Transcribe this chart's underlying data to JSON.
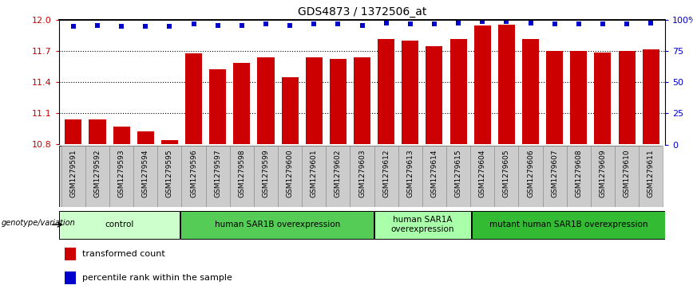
{
  "title": "GDS4873 / 1372506_at",
  "samples": [
    "GSM1279591",
    "GSM1279592",
    "GSM1279593",
    "GSM1279594",
    "GSM1279595",
    "GSM1279596",
    "GSM1279597",
    "GSM1279598",
    "GSM1279599",
    "GSM1279600",
    "GSM1279601",
    "GSM1279602",
    "GSM1279603",
    "GSM1279612",
    "GSM1279613",
    "GSM1279614",
    "GSM1279615",
    "GSM1279604",
    "GSM1279605",
    "GSM1279606",
    "GSM1279607",
    "GSM1279608",
    "GSM1279609",
    "GSM1279610",
    "GSM1279611"
  ],
  "red_values": [
    11.04,
    11.04,
    10.97,
    10.93,
    10.84,
    11.68,
    11.53,
    11.59,
    11.64,
    11.45,
    11.64,
    11.63,
    11.64,
    11.82,
    11.8,
    11.75,
    11.82,
    11.95,
    11.96,
    11.82,
    11.7,
    11.7,
    11.69,
    11.7,
    11.72
  ],
  "blue_values": [
    95,
    96,
    95,
    95,
    95,
    97,
    96,
    96,
    97,
    96,
    97,
    97,
    96,
    98,
    97,
    97,
    98,
    99,
    99,
    98,
    97,
    97,
    97,
    97,
    98
  ],
  "bar_color": "#cc0000",
  "dot_color": "#0000cc",
  "ylim_left": [
    10.8,
    12.0
  ],
  "ylim_right": [
    0,
    100
  ],
  "yticks_left": [
    10.8,
    11.1,
    11.4,
    11.7,
    12.0
  ],
  "yticks_right": [
    0,
    25,
    50,
    75,
    100
  ],
  "ytick_labels_right": [
    "0",
    "25",
    "50",
    "75",
    "100%"
  ],
  "groups": [
    {
      "label": "control",
      "start": 0,
      "end": 5,
      "color": "#ccffcc"
    },
    {
      "label": "human SAR1B overexpression",
      "start": 5,
      "end": 13,
      "color": "#55cc55"
    },
    {
      "label": "human SAR1A\noverexpression",
      "start": 13,
      "end": 17,
      "color": "#aaffaa"
    },
    {
      "label": "mutant human SAR1B overexpression",
      "start": 17,
      "end": 25,
      "color": "#33bb33"
    }
  ],
  "genotype_label": "genotype/variation",
  "legend_red": "transformed count",
  "legend_blue": "percentile rank within the sample",
  "bg_color": "#ffffff",
  "plot_bg": "#ffffff",
  "tick_color_left": "#cc0000",
  "tick_color_right": "#0000cc",
  "xlabel_bg": "#cccccc",
  "grid_lines": [
    11.1,
    11.4,
    11.7
  ]
}
